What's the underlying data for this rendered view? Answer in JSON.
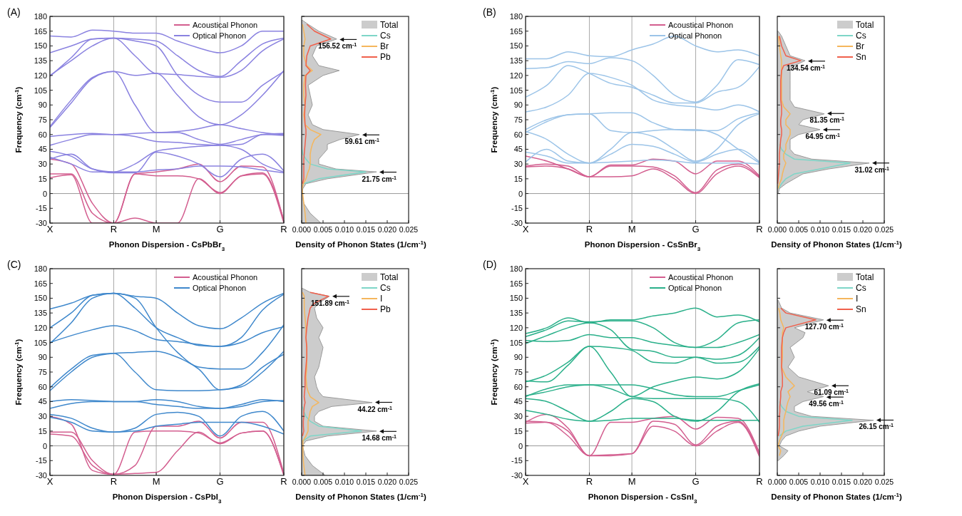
{
  "chart_data": [
    {
      "type": "line",
      "title": "(A)",
      "xlabel": "Phonon Dispersion - CsPbBr$_{3}$",
      "ylabel": "Frequency (cm$^{-1}$)",
      "categories": [
        "X",
        null,
        null,
        "R",
        null,
        "M",
        null,
        null,
        "G",
        null,
        null,
        "R"
      ],
      "ylim": [
        -30,
        180
      ],
      "yticks": [
        -30,
        -15,
        0,
        15,
        30,
        45,
        60,
        75,
        90,
        105,
        120,
        135,
        150,
        165,
        180
      ],
      "grid": "x",
      "legend": "top right",
      "ref_lines": [
        {
          "axis": "y",
          "value": 0
        }
      ],
      "series": [
        {
          "name": "Acoustical Phonon",
          "color": "#d35e8f",
          "values": [
            16,
            19,
            -30,
            -30,
            -25,
            -30,
            -30,
            15,
            0,
            18,
            20,
            -30
          ]
        },
        {
          "color": "#d35e8f",
          "values": [
            20,
            20,
            -20,
            -30,
            20,
            18,
            18,
            15,
            1,
            18,
            21,
            -27
          ]
        },
        {
          "color": "#d35e8f",
          "values": [
            35,
            30,
            -10,
            -30,
            20,
            22,
            25,
            30,
            12,
            28,
            27,
            -28
          ]
        },
        {
          "name": "Optical Phonon",
          "color": "#8a82e0",
          "values": [
            160,
            159,
            166,
            165,
            163,
            163,
            155,
            148,
            143,
            150,
            165,
            165
          ]
        },
        {
          "color": "#8a82e0",
          "values": [
            143,
            150,
            157,
            158,
            157,
            155,
            140,
            125,
            119,
            135,
            152,
            158
          ]
        },
        {
          "color": "#8a82e0",
          "values": [
            120,
            135,
            150,
            158,
            140,
            122,
            121,
            119,
            118,
            125,
            145,
            157
          ]
        },
        {
          "color": "#8a82e0",
          "values": [
            119,
            138,
            157,
            158,
            155,
            150,
            120,
            100,
            93,
            93,
            110,
            124
          ]
        },
        {
          "color": "#8a82e0",
          "values": [
            68,
            95,
            118,
            124,
            120,
            122,
            100,
            78,
            70,
            80,
            100,
            125
          ]
        },
        {
          "color": "#8a82e0",
          "values": [
            67,
            92,
            117,
            124,
            90,
            62,
            63,
            66,
            70,
            66,
            62,
            60
          ]
        },
        {
          "color": "#8a82e0",
          "values": [
            58,
            60,
            61,
            60,
            61,
            62,
            62,
            55,
            50,
            55,
            60,
            61
          ]
        },
        {
          "color": "#8a82e0",
          "values": [
            49,
            55,
            60,
            60,
            58,
            53,
            52,
            50,
            49,
            50,
            60,
            59
          ]
        },
        {
          "color": "#8a82e0",
          "values": [
            43,
            38,
            25,
            22,
            30,
            43,
            46,
            48,
            49,
            45,
            30,
            22
          ]
        },
        {
          "color": "#8a82e0",
          "values": [
            37,
            30,
            22,
            22,
            22,
            24,
            25,
            28,
            28,
            27,
            24,
            21
          ]
        },
        {
          "color": "#8a82e0",
          "values": [
            35,
            40,
            25,
            21,
            21,
            42,
            38,
            30,
            17,
            35,
            40,
            23
          ]
        }
      ]
    },
    {
      "type": "line",
      "xlabel": "Density of Phonon States (1/cm$^{-1}$)",
      "xlim": [
        0,
        0.025
      ],
      "xticks": [
        {
          "value": 0,
          "label": "0.000"
        },
        {
          "value": 0.005,
          "label": "0.005"
        },
        {
          "value": 0.01,
          "label": "0.010"
        },
        {
          "value": 0.015,
          "label": "0.015"
        },
        {
          "value": 0.02,
          "label": "0.020"
        },
        {
          "value": 0.025,
          "label": "0.025"
        }
      ],
      "ylim": [
        -30,
        180
      ],
      "yticks": [
        {
          "value": -30,
          "label": null
        },
        {
          "value": 0,
          "label": null
        },
        {
          "value": 30,
          "label": null
        },
        {
          "value": 60,
          "label": null
        },
        {
          "value": 90,
          "label": null
        },
        {
          "value": 120,
          "label": null
        },
        {
          "value": 150,
          "label": null
        },
        {
          "value": 180,
          "label": null
        }
      ],
      "tick_labels": "x",
      "legend": "top right",
      "ref_lines": [
        {
          "axis": "y",
          "value": 0
        }
      ],
      "annotations": [
        {
          "text": "156.52 cm$^{-1}$",
          "x": 0.0082,
          "y": 156.52
        },
        {
          "text": "59.61 cm$^{-1}$",
          "x": 0.0135,
          "y": 59.61
        },
        {
          "text": "21.75 cm$^{-1}$",
          "x": 0.0175,
          "y": 21.75
        }
      ],
      "series": [
        {
          "name": "Total",
          "type": "area",
          "color": "#cccccc",
          "x": [
            0,
            0.0045,
            0.002,
            0.0005,
            0.0001,
            0.0003,
            0.001,
            0.006,
            0.0175,
            0.008,
            0.004,
            0.004,
            0.005,
            0.006,
            0.006,
            0.009,
            0.0135,
            0.005,
            0.0025,
            0.0015,
            0.0025,
            0.002,
            0.0015,
            0.005,
            0.0088,
            0.004,
            0.0025,
            0.0035,
            0.0082,
            0.004,
            0.0015,
            0.0002
          ],
          "values": [
            -30,
            -30,
            -20,
            -10,
            0,
            5,
            10,
            15,
            22,
            25,
            30,
            35,
            40,
            45,
            50,
            55,
            60,
            65,
            70,
            80,
            90,
            100,
            110,
            120,
            125,
            130,
            140,
            150,
            157,
            165,
            172,
            176
          ]
        },
        {
          "name": "Cs",
          "color": "#7ed6c8",
          "x": [
            0.0005,
            0.004,
            0.015,
            0.006,
            0.002,
            0.001,
            0.0003,
            0.0001
          ],
          "values": [
            10,
            15,
            22,
            25,
            30,
            35,
            40,
            45
          ]
        },
        {
          "name": "Br",
          "color": "#f5b65c",
          "x": [
            0.001,
            0.0008,
            0.0005,
            0.0001,
            0.0004,
            0.001,
            0.0015,
            0.0018,
            0.002,
            0.002,
            0.002,
            0.0022,
            0.0025,
            0.003,
            0.0045,
            0.002,
            0.0008,
            0.0005,
            0.0008,
            0.0005,
            0.0005,
            0.0008,
            0.0025,
            0.0012,
            0.0005,
            0.0005,
            0.0008,
            0.0005,
            0.0002
          ],
          "values": [
            -30,
            -20,
            -10,
            5,
            10,
            15,
            22,
            25,
            30,
            35,
            40,
            45,
            50,
            55,
            60,
            65,
            70,
            80,
            90,
            100,
            110,
            120,
            125,
            130,
            140,
            150,
            157,
            165,
            172
          ]
        },
        {
          "name": "Pb",
          "color": "#f0604c",
          "x": [
            0.0002,
            0.0005,
            0.0005,
            0.0005,
            0.0005,
            0.0005,
            0.0006,
            0.0007,
            0.0008,
            0.0009,
            0.001,
            0.001,
            0.0008,
            0.0007,
            0.0008,
            0.001,
            0.0009,
            0.001,
            0.002,
            0.001,
            0.0012,
            0.002,
            0.0068,
            0.003,
            0.0012
          ],
          "values": [
            10,
            15,
            22,
            25,
            30,
            35,
            40,
            45,
            50,
            55,
            60,
            65,
            70,
            80,
            90,
            100,
            110,
            120,
            125,
            130,
            140,
            150,
            157,
            165,
            172
          ]
        }
      ]
    },
    {
      "type": "line",
      "title": "(B)",
      "xlabel": "Phonon Dispersion - CsSnBr$_{3}$",
      "ylabel": "Frequency (cm$^{-1}$)",
      "categories": [
        "X",
        null,
        null,
        "R",
        null,
        "M",
        null,
        null,
        "G",
        null,
        null,
        "R"
      ],
      "ylim": [
        -30,
        180
      ],
      "yticks": [
        -30,
        -15,
        0,
        15,
        30,
        45,
        60,
        75,
        90,
        105,
        120,
        135,
        150,
        165,
        180
      ],
      "grid": "x",
      "legend": "top right",
      "ref_lines": [
        {
          "axis": "y",
          "value": 0
        }
      ],
      "series": [
        {
          "name": "Acoustical Phonon",
          "color": "#d35e8f",
          "values": [
            27,
            28,
            25,
            17,
            17,
            18,
            25,
            15,
            0,
            20,
            28,
            16
          ]
        },
        {
          "color": "#d35e8f",
          "values": [
            28,
            30,
            28,
            17,
            28,
            28,
            27,
            18,
            1,
            24,
            30,
            17
          ]
        },
        {
          "color": "#d35e8f",
          "values": [
            38,
            33,
            25,
            17,
            29,
            29,
            35,
            33,
            20,
            33,
            33,
            18
          ]
        },
        {
          "name": "Optical Phonon",
          "color": "#9cc4e8",
          "values": [
            137,
            137,
            144,
            140,
            139,
            146,
            152,
            160,
            150,
            144,
            146,
            140
          ]
        },
        {
          "color": "#9cc4e8",
          "values": [
            127,
            128,
            134,
            132,
            138,
            135,
            120,
            100,
            93,
            110,
            136,
            131
          ]
        },
        {
          "color": "#9cc4e8",
          "values": [
            98,
            110,
            130,
            122,
            112,
            108,
            100,
            92,
            92,
            103,
            108,
            129
          ]
        },
        {
          "color": "#9cc4e8",
          "values": [
            83,
            88,
            100,
            122,
            118,
            110,
            95,
            90,
            88,
            85,
            90,
            83
          ]
        },
        {
          "color": "#9cc4e8",
          "values": [
            65,
            75,
            80,
            81,
            82,
            82,
            72,
            65,
            64,
            64,
            76,
            82
          ]
        },
        {
          "color": "#9cc4e8",
          "values": [
            62,
            73,
            80,
            81,
            64,
            62,
            64,
            65,
            65,
            60,
            45,
            31
          ]
        },
        {
          "color": "#9cc4e8",
          "values": [
            63,
            55,
            40,
            31,
            45,
            62,
            58,
            45,
            33,
            45,
            70,
            81
          ]
        },
        {
          "color": "#9cc4e8",
          "values": [
            42,
            38,
            31,
            31,
            32,
            33,
            34,
            33,
            31,
            31,
            31,
            30
          ]
        },
        {
          "color": "#9cc4e8",
          "values": [
            32,
            45,
            33,
            31,
            40,
            50,
            48,
            40,
            32,
            40,
            45,
            32
          ]
        }
      ]
    },
    {
      "type": "line",
      "xlabel": "Density of Phonon States (1/cm$^{-1}$)",
      "xlim": [
        0,
        0.025
      ],
      "xticks": [
        {
          "value": 0,
          "label": "0.000"
        },
        {
          "value": 0.005,
          "label": "0.005"
        },
        {
          "value": 0.01,
          "label": "0.010"
        },
        {
          "value": 0.015,
          "label": "0.015"
        },
        {
          "value": 0.02,
          "label": "0.020"
        },
        {
          "value": 0.025,
          "label": "0.025"
        }
      ],
      "ylim": [
        -30,
        180
      ],
      "yticks": [
        {
          "value": -30,
          "label": null
        },
        {
          "value": 0,
          "label": null
        },
        {
          "value": 30,
          "label": null
        },
        {
          "value": 60,
          "label": null
        },
        {
          "value": 90,
          "label": null
        },
        {
          "value": 120,
          "label": null
        },
        {
          "value": 150,
          "label": null
        },
        {
          "value": 180,
          "label": null
        }
      ],
      "tick_labels": "x",
      "legend": "top right",
      "ref_lines": [
        {
          "axis": "y",
          "value": 0
        }
      ],
      "annotations": [
        {
          "text": "134.54 cm$^{-1}$",
          "x": 0.0065,
          "y": 134.54
        },
        {
          "text": "81.35 cm$^{-1}$",
          "x": 0.011,
          "y": 81.35
        },
        {
          "text": "64.95 cm$^{-1}$",
          "x": 0.01,
          "y": 64.95
        },
        {
          "text": "31.02 cm$^{-1}$",
          "x": 0.0215,
          "y": 31.02
        }
      ],
      "series": [
        {
          "name": "Total",
          "type": "area",
          "color": "#cccccc",
          "x": [
            0.0002,
            0.0005,
            0.002,
            0.004,
            0.006,
            0.012,
            0.0215,
            0.008,
            0.004,
            0.003,
            0.003,
            0.003,
            0.005,
            0.01,
            0.005,
            0.006,
            0.011,
            0.004,
            0.003,
            0.003,
            0.003,
            0.003,
            0.004,
            0.0065,
            0.003,
            0.002,
            0.001,
            0.0002
          ],
          "values": [
            0,
            5,
            10,
            15,
            20,
            25,
            31,
            35,
            40,
            45,
            50,
            55,
            60,
            65,
            70,
            75,
            81,
            88,
            95,
            105,
            115,
            125,
            130,
            135,
            140,
            150,
            160,
            165
          ]
        },
        {
          "name": "Cs",
          "color": "#7ed6c8",
          "x": [
            0.0003,
            0.001,
            0.002,
            0.004,
            0.01,
            0.017,
            0.004,
            0.002,
            0.001,
            0.0005
          ],
          "values": [
            5,
            10,
            15,
            20,
            25,
            31,
            35,
            40,
            45,
            50
          ]
        },
        {
          "name": "Br",
          "color": "#f5b65c",
          "x": [
            0.0002,
            0.0005,
            0.001,
            0.0012,
            0.0015,
            0.002,
            0.0015,
            0.0015,
            0.002,
            0.002,
            0.0025,
            0.003,
            0.003,
            0.002,
            0.002,
            0.003,
            0.0015,
            0.001,
            0.001,
            0.001,
            0.001,
            0.001,
            0.001,
            0.0008,
            0.0005,
            0.0003
          ],
          "values": [
            5,
            10,
            15,
            20,
            25,
            31,
            35,
            40,
            45,
            50,
            55,
            60,
            65,
            70,
            75,
            81,
            88,
            95,
            105,
            115,
            125,
            130,
            135,
            140,
            150,
            160
          ]
        },
        {
          "name": "Sn",
          "color": "#f0604c",
          "x": [
            0.0001,
            0.0002,
            0.0003,
            0.0004,
            0.0005,
            0.0005,
            0.0005,
            0.0006,
            0.0007,
            0.0008,
            0.001,
            0.001,
            0.0008,
            0.0008,
            0.001,
            0.001,
            0.0008,
            0.0008,
            0.0008,
            0.001,
            0.0015,
            0.0055,
            0.002,
            0.001,
            0.0005
          ],
          "values": [
            10,
            15,
            20,
            25,
            31,
            35,
            40,
            45,
            50,
            55,
            60,
            65,
            70,
            75,
            81,
            88,
            95,
            105,
            115,
            125,
            130,
            135,
            140,
            150,
            160
          ]
        }
      ]
    },
    {
      "type": "line",
      "title": "(C)",
      "xlabel": "Phonon Dispersion - CsPbI$_{3}$",
      "ylabel": "Frequency (cm$^{-1}$)",
      "categories": [
        "X",
        null,
        null,
        "R",
        null,
        "M",
        null,
        null,
        "G",
        null,
        null,
        "R"
      ],
      "ylim": [
        -30,
        180
      ],
      "yticks": [
        -30,
        -15,
        0,
        15,
        30,
        45,
        60,
        75,
        90,
        105,
        120,
        135,
        150,
        165,
        180
      ],
      "grid": "x",
      "legend": "top right",
      "ref_lines": [
        {
          "axis": "y",
          "value": 0
        }
      ],
      "series": [
        {
          "name": "Acoustical Phonon",
          "color": "#d35e8f",
          "values": [
            12,
            10,
            -20,
            -29,
            -28,
            -27,
            -5,
            14,
            2,
            13,
            15,
            -30
          ]
        },
        {
          "color": "#d35e8f",
          "values": [
            14,
            14,
            -15,
            -29,
            14,
            15,
            15,
            13,
            3,
            13,
            15,
            -29
          ]
        },
        {
          "color": "#d35e8f",
          "values": [
            30,
            22,
            -25,
            -29,
            -20,
            20,
            20,
            25,
            8,
            24,
            24,
            -28
          ]
        },
        {
          "name": "Optical Phonon",
          "color": "#3f88cc",
          "values": [
            139,
            145,
            153,
            155,
            152,
            150,
            135,
            122,
            119,
            130,
            145,
            155
          ]
        },
        {
          "color": "#3f88cc",
          "values": [
            120,
            135,
            153,
            155,
            140,
            120,
            110,
            102,
            101,
            110,
            138,
            154
          ]
        },
        {
          "color": "#3f88cc",
          "values": [
            105,
            112,
            118,
            122,
            117,
            108,
            106,
            103,
            101,
            105,
            115,
            121
          ]
        },
        {
          "color": "#3f88cc",
          "values": [
            104,
            125,
            150,
            155,
            150,
            120,
            95,
            80,
            78,
            78,
            95,
            123
          ]
        },
        {
          "color": "#3f88cc",
          "values": [
            56,
            75,
            90,
            94,
            95,
            96,
            90,
            78,
            57,
            62,
            80,
            93
          ]
        },
        {
          "color": "#3f88cc",
          "values": [
            59,
            78,
            92,
            94,
            75,
            57,
            56,
            56,
            57,
            60,
            75,
            96
          ]
        },
        {
          "color": "#3f88cc",
          "values": [
            45,
            47,
            46,
            45,
            45,
            47,
            45,
            40,
            38,
            42,
            47,
            45
          ]
        },
        {
          "color": "#3f88cc",
          "values": [
            38,
            43,
            45,
            45,
            45,
            42,
            40,
            38,
            38,
            40,
            45,
            46
          ]
        },
        {
          "color": "#3f88cc",
          "values": [
            32,
            28,
            18,
            14,
            18,
            32,
            34,
            30,
            10,
            30,
            35,
            15
          ]
        },
        {
          "color": "#3f88cc",
          "values": [
            29,
            24,
            15,
            14,
            15,
            20,
            22,
            24,
            24,
            24,
            20,
            12
          ]
        }
      ]
    },
    {
      "type": "line",
      "xlabel": "Density of Phonon States (1/cm$^{-1}$)",
      "xlim": [
        0,
        0.025
      ],
      "xticks": [
        {
          "value": 0,
          "label": "0.000"
        },
        {
          "value": 0.005,
          "label": "0.005"
        },
        {
          "value": 0.01,
          "label": "0.010"
        },
        {
          "value": 0.015,
          "label": "0.015"
        },
        {
          "value": 0.02,
          "label": "0.020"
        },
        {
          "value": 0.025,
          "label": "0.025"
        }
      ],
      "ylim": [
        -30,
        180
      ],
      "yticks": [
        {
          "value": -30,
          "label": null
        },
        {
          "value": 0,
          "label": null
        },
        {
          "value": 30,
          "label": null
        },
        {
          "value": 60,
          "label": null
        },
        {
          "value": 90,
          "label": null
        },
        {
          "value": 120,
          "label": null
        },
        {
          "value": 150,
          "label": null
        },
        {
          "value": 180,
          "label": null
        }
      ],
      "tick_labels": "x",
      "legend": "top right",
      "ref_lines": [
        {
          "axis": "y",
          "value": 0
        }
      ],
      "annotations": [
        {
          "text": "151.89 cm$^{-1}$",
          "x": 0.0065,
          "y": 151.89
        },
        {
          "text": "44.22 cm$^{-1}$",
          "x": 0.0165,
          "y": 44.22
        },
        {
          "text": "14.68 cm$^{-1}$",
          "x": 0.0175,
          "y": 14.68
        }
      ],
      "series": [
        {
          "name": "Total",
          "type": "area",
          "color": "#cccccc",
          "x": [
            0,
            0.0055,
            0.0025,
            0.0008,
            0.0002,
            0.001,
            0.006,
            0.0175,
            0.005,
            0.003,
            0.003,
            0.004,
            0.007,
            0.0165,
            0.005,
            0.004,
            0.0035,
            0.003,
            0.004,
            0.0045,
            0.005,
            0.004,
            0.005,
            0.0035,
            0.003,
            0.004,
            0.0065,
            0.002,
            0.0002
          ],
          "values": [
            -30,
            -30,
            -20,
            -10,
            0,
            5,
            10,
            15,
            20,
            25,
            30,
            35,
            40,
            44,
            50,
            55,
            60,
            70,
            80,
            90,
            100,
            110,
            120,
            130,
            140,
            145,
            152,
            156,
            160
          ]
        },
        {
          "name": "Cs",
          "color": "#7ed6c8",
          "x": [
            0.0003,
            0.002,
            0.014,
            0.004,
            0.002,
            0.001,
            0.0005,
            0.0002
          ],
          "values": [
            5,
            10,
            15,
            20,
            25,
            30,
            35,
            40
          ]
        },
        {
          "name": "I",
          "color": "#f5b65c",
          "x": [
            0.0008,
            0.0005,
            0.0003,
            0.0003,
            0.001,
            0.0015,
            0.0015,
            0.0015,
            0.0018,
            0.002,
            0.0025,
            0.004,
            0.002,
            0.0015,
            0.0012,
            0.001,
            0.0012,
            0.0012,
            0.0012,
            0.001,
            0.001,
            0.0008,
            0.0006,
            0.0006,
            0.0006,
            0.0002
          ],
          "values": [
            -30,
            -20,
            -10,
            5,
            10,
            15,
            20,
            25,
            30,
            35,
            40,
            44,
            50,
            55,
            60,
            70,
            80,
            90,
            100,
            110,
            120,
            130,
            140,
            145,
            152,
            156
          ]
        },
        {
          "name": "Pb",
          "color": "#f0604c",
          "x": [
            0.0002,
            0.0005,
            0.0004,
            0.0004,
            0.0005,
            0.0005,
            0.0006,
            0.0008,
            0.0006,
            0.0007,
            0.0008,
            0.0008,
            0.001,
            0.0012,
            0.0012,
            0.001,
            0.0012,
            0.0015,
            0.002,
            0.003,
            0.0063,
            0.002
          ],
          "values": [
            10,
            15,
            20,
            25,
            30,
            35,
            40,
            44,
            50,
            55,
            60,
            70,
            80,
            90,
            100,
            110,
            120,
            130,
            140,
            145,
            152,
            156
          ]
        }
      ]
    },
    {
      "type": "line",
      "title": "(D)",
      "xlabel": "Phonon Dispersion - CsSnI$_{3}$",
      "ylabel": "Frequency (cm$^{-1}$)",
      "categories": [
        "X",
        null,
        null,
        "R",
        null,
        "M",
        null,
        null,
        "G",
        null,
        null,
        "R"
      ],
      "ylim": [
        -30,
        180
      ],
      "yticks": [
        -30,
        -15,
        0,
        15,
        30,
        45,
        60,
        75,
        90,
        105,
        120,
        135,
        150,
        165,
        180
      ],
      "grid": "x",
      "legend": "top right",
      "ref_lines": [
        {
          "axis": "y",
          "value": 0
        }
      ],
      "series": [
        {
          "name": "Acoustical Phonon",
          "color": "#d35e8f",
          "values": [
            23,
            24,
            15,
            -10,
            -10,
            -8,
            20,
            15,
            0,
            15,
            24,
            -11
          ]
        },
        {
          "color": "#d35e8f",
          "values": [
            25,
            24,
            10,
            -10,
            -9,
            -8,
            25,
            22,
            1,
            20,
            25,
            -9
          ]
        },
        {
          "color": "#d35e8f",
          "values": [
            24,
            32,
            18,
            -10,
            24,
            24,
            28,
            30,
            17,
            29,
            28,
            -7
          ]
        },
        {
          "name": "Optical Phonon",
          "color": "#2ab08a",
          "values": [
            114,
            120,
            130,
            125,
            128,
            128,
            132,
            135,
            140,
            131,
            133,
            126
          ]
        },
        {
          "color": "#2ab08a",
          "values": [
            111,
            118,
            127,
            126,
            127,
            127,
            120,
            105,
            100,
            108,
            125,
            128
          ]
        },
        {
          "color": "#2ab08a",
          "values": [
            107,
            106,
            107,
            113,
            110,
            110,
            105,
            102,
            100,
            100,
            105,
            113
          ]
        },
        {
          "color": "#2ab08a",
          "values": [
            104,
            112,
            120,
            125,
            118,
            98,
            96,
            90,
            90,
            88,
            92,
            110
          ]
        },
        {
          "color": "#2ab08a",
          "values": [
            65,
            72,
            85,
            101,
            100,
            97,
            85,
            84,
            90,
            84,
            85,
            101
          ]
        },
        {
          "color": "#2ab08a",
          "values": [
            66,
            65,
            82,
            101,
            75,
            50,
            60,
            66,
            70,
            68,
            75,
            99
          ]
        },
        {
          "color": "#2ab08a",
          "values": [
            51,
            55,
            60,
            62,
            62,
            62,
            58,
            52,
            50,
            50,
            56,
            62
          ]
        },
        {
          "color": "#2ab08a",
          "values": [
            48,
            45,
            35,
            25,
            35,
            48,
            45,
            30,
            25,
            35,
            55,
            63
          ]
        },
        {
          "color": "#2ab08a",
          "values": [
            50,
            58,
            62,
            62,
            58,
            50,
            48,
            48,
            48,
            48,
            45,
            24
          ]
        },
        {
          "color": "#2ab08a",
          "values": [
            36,
            32,
            27,
            25,
            26,
            28,
            28,
            28,
            26,
            26,
            26,
            26
          ]
        }
      ]
    },
    {
      "type": "line",
      "xlabel": "Density of Phonon States (1/cm$^{-1}$)",
      "xlim": [
        0,
        0.025
      ],
      "xticks": [
        {
          "value": 0,
          "label": "0.000"
        },
        {
          "value": 0.005,
          "label": "0.005"
        },
        {
          "value": 0.01,
          "label": "0.010"
        },
        {
          "value": 0.015,
          "label": "0.015"
        },
        {
          "value": 0.02,
          "label": "0.020"
        },
        {
          "value": 0.025,
          "label": "0.025"
        }
      ],
      "ylim": [
        -30,
        180
      ],
      "yticks": [
        {
          "value": -30,
          "label": null
        },
        {
          "value": 0,
          "label": null
        },
        {
          "value": 30,
          "label": null
        },
        {
          "value": 60,
          "label": null
        },
        {
          "value": 90,
          "label": null
        },
        {
          "value": 120,
          "label": null
        },
        {
          "value": 150,
          "label": null
        },
        {
          "value": 180,
          "label": null
        }
      ],
      "tick_labels": "x",
      "legend": "top right",
      "ref_lines": [
        {
          "axis": "y",
          "value": 0
        }
      ],
      "annotations": [
        {
          "text": "127.70 cm$^{-1}$",
          "x": 0.0108,
          "y": 127.7
        },
        {
          "text": "61.09 cm$^{-1}$",
          "x": 0.012,
          "y": 61.09
        },
        {
          "text": "49.56 cm$^{-1}$",
          "x": 0.0108,
          "y": 49.56
        },
        {
          "text": "26.15 cm$^{-1}$",
          "x": 0.0225,
          "y": 26.15
        }
      ],
      "series": [
        {
          "name": "Total",
          "type": "area",
          "color": "#cccccc",
          "x": [
            0.0002,
            0.0015,
            0.0025,
            0.0005,
            0.001,
            0.002,
            0.005,
            0.01,
            0.0225,
            0.008,
            0.004,
            0.004,
            0.006,
            0.0108,
            0.007,
            0.012,
            0.005,
            0.0025,
            0.004,
            0.003,
            0.006,
            0.0065,
            0.004,
            0.0108,
            0.003,
            0.001,
            0.0002
          ],
          "values": [
            -15,
            -10,
            -5,
            0,
            5,
            10,
            15,
            20,
            26,
            30,
            35,
            40,
            45,
            50,
            55,
            61,
            70,
            80,
            90,
            100,
            110,
            115,
            120,
            128,
            135,
            140,
            148
          ]
        },
        {
          "name": "Cs",
          "color": "#7ed6c8",
          "x": [
            0.0005,
            0.002,
            0.006,
            0.0175,
            0.005,
            0.002,
            0.001,
            0.0005
          ],
          "values": [
            10,
            15,
            20,
            26,
            30,
            35,
            40,
            45
          ]
        },
        {
          "name": "I",
          "color": "#f5b65c",
          "x": [
            0.0005,
            0.0008,
            0.0002,
            0.0005,
            0.001,
            0.0015,
            0.0015,
            0.0015,
            0.0017,
            0.002,
            0.0022,
            0.0025,
            0.003,
            0.0025,
            0.004,
            0.002,
            0.001,
            0.0012,
            0.0012,
            0.0012,
            0.0012,
            0.0015,
            0.0008,
            0.0006,
            0.0003
          ],
          "values": [
            -10,
            -5,
            0,
            5,
            10,
            15,
            20,
            26,
            30,
            35,
            40,
            45,
            50,
            55,
            61,
            70,
            80,
            90,
            100,
            110,
            115,
            120,
            128,
            135,
            140
          ]
        },
        {
          "name": "Sn",
          "color": "#f0604c",
          "x": [
            0.0002,
            0.0004,
            0.0005,
            0.0005,
            0.0005,
            0.0006,
            0.0006,
            0.0007,
            0.0008,
            0.0008,
            0.0012,
            0.0012,
            0.001,
            0.001,
            0.001,
            0.0012,
            0.0015,
            0.002,
            0.009,
            0.002,
            0.0008
          ],
          "values": [
            10,
            15,
            20,
            26,
            30,
            35,
            40,
            45,
            50,
            55,
            61,
            70,
            80,
            90,
            100,
            110,
            115,
            120,
            128,
            135,
            140
          ]
        }
      ]
    }
  ]
}
